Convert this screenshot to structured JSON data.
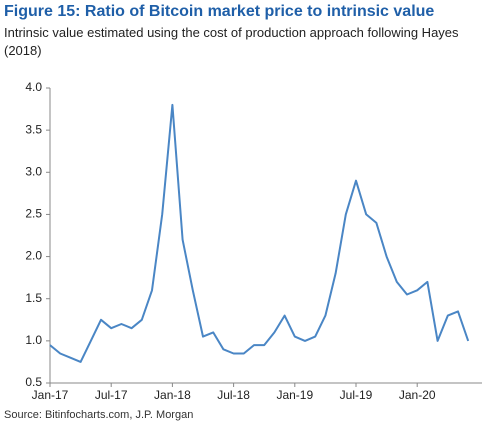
{
  "chart_data": {
    "type": "line",
    "title": "Figure 15: Ratio of Bitcoin market price to intrinsic value",
    "subtitle": "Intrinsic value estimated using the cost of production approach following Hayes (2018)",
    "source": "Source: Bitinfocharts.com, J.P. Morgan",
    "categories": [
      "Jan-17",
      null,
      null,
      null,
      null,
      null,
      "Jul-17",
      null,
      null,
      null,
      null,
      null,
      "Jan-18",
      null,
      null,
      null,
      null,
      null,
      "Jul-18",
      null,
      null,
      null,
      null,
      null,
      "Jan-19",
      null,
      null,
      null,
      null,
      null,
      "Jul-19",
      null,
      null,
      null,
      null,
      null,
      "Jan-20",
      null,
      null,
      null,
      null,
      null
    ],
    "values": [
      0.95,
      0.85,
      0.8,
      0.75,
      1.0,
      1.25,
      1.15,
      1.2,
      1.15,
      1.25,
      1.6,
      2.5,
      3.8,
      2.2,
      1.6,
      1.05,
      1.1,
      0.9,
      0.85,
      0.85,
      0.95,
      0.95,
      1.1,
      1.3,
      1.05,
      1.0,
      1.05,
      1.3,
      1.8,
      2.5,
      2.9,
      2.5,
      2.4,
      2.0,
      1.7,
      1.55,
      1.6,
      1.7,
      1.0,
      1.3,
      1.35,
      1.0
    ],
    "color": "#4a86c5",
    "ylim": [
      0.5,
      4.0
    ],
    "yticks": [
      0.5,
      {
        "value": 1.0,
        "label": "1.0"
      },
      1.5,
      {
        "value": 2.0,
        "label": "2.0"
      },
      2.5,
      {
        "value": 3.0,
        "label": "3.0"
      },
      3.5,
      {
        "value": 4.0,
        "label": "4.0"
      }
    ],
    "grid": false
  }
}
